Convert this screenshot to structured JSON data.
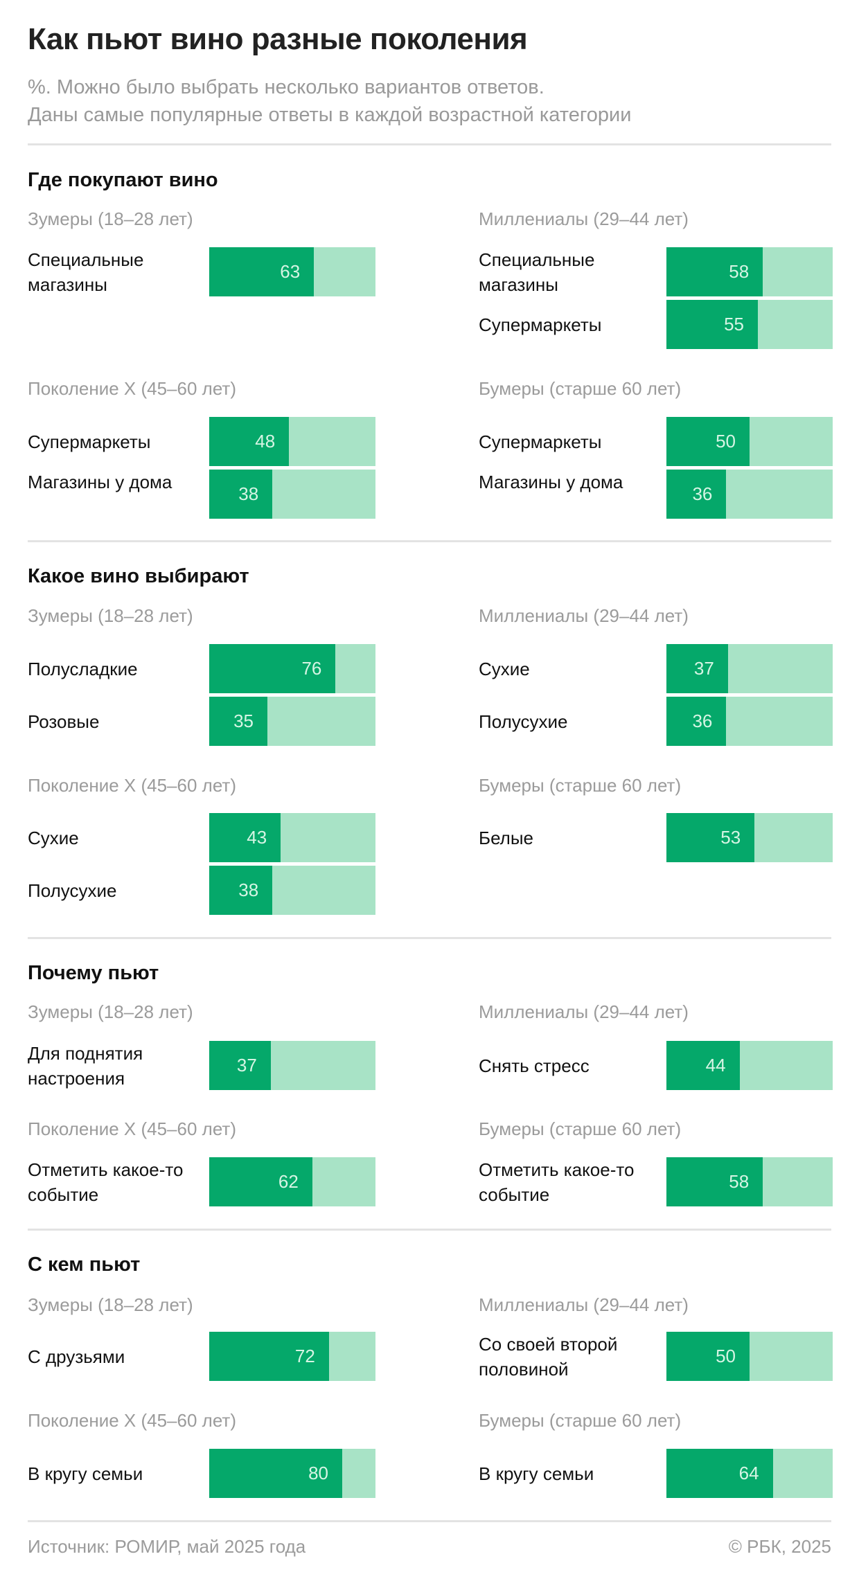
{
  "header": {
    "title": "Как пьют вино разные поколения",
    "subtitle_line1": "%. Можно было выбрать несколько вариантов ответов.",
    "subtitle_line2": "Даны самые популярные ответы в каждой возрастной категории"
  },
  "colors": {
    "bar_fill": "#05A86A",
    "bar_track": "#A8E3C6",
    "value_text": "#D6F5E4",
    "muted_text": "#9B9B9B"
  },
  "generations": {
    "zoomers": "Зумеры (18–28 лет)",
    "millennials": "Миллениалы (29–44 лет)",
    "genx": "Поколение X (45–60 лет)",
    "boomers": "Бумеры (старше 60 лет)"
  },
  "sections": [
    {
      "title": "Где покупают вино",
      "zoomers": [
        {
          "label": "Специальные магазины",
          "value": 63
        }
      ],
      "millennials": [
        {
          "label": "Специальные магазины",
          "value": 58
        },
        {
          "label": "Супермаркеты",
          "value": 55
        }
      ],
      "genx": [
        {
          "label": "Супермаркеты",
          "value": 48
        },
        {
          "label": "Магазины у дома",
          "value": 38
        }
      ],
      "boomers": [
        {
          "label": "Супермаркеты",
          "value": 50
        },
        {
          "label": "Магазины у дома",
          "value": 36
        }
      ]
    },
    {
      "title": "Какое вино выбирают",
      "zoomers": [
        {
          "label": "Полусладкие",
          "value": 76
        },
        {
          "label": "Розовые",
          "value": 35
        }
      ],
      "millennials": [
        {
          "label": "Сухие",
          "value": 37
        },
        {
          "label": "Полусухие",
          "value": 36
        }
      ],
      "genx": [
        {
          "label": "Сухие",
          "value": 43
        },
        {
          "label": "Полусухие",
          "value": 38
        }
      ],
      "boomers": [
        {
          "label": "Белые",
          "value": 53
        }
      ]
    },
    {
      "title": "Почему пьют",
      "zoomers": [
        {
          "label": "Для поднятия настроения",
          "value": 37
        }
      ],
      "millennials": [
        {
          "label": "Снять стресс",
          "value": 44
        }
      ],
      "genx": [
        {
          "label": "Отметить какое-то событие",
          "value": 62
        }
      ],
      "boomers": [
        {
          "label": "Отметить какое-то событие",
          "value": 58
        }
      ]
    },
    {
      "title": "С кем пьют",
      "zoomers": [
        {
          "label": "С друзьями",
          "value": 72
        }
      ],
      "millennials": [
        {
          "label": "Со своей второй половиной",
          "value": 50
        }
      ],
      "genx": [
        {
          "label": "В кругу семьи",
          "value": 80
        }
      ],
      "boomers": [
        {
          "label": "В кругу семьи",
          "value": 64
        }
      ]
    }
  ],
  "footer": {
    "source": "Источник: РОМИР, май 2025 года",
    "copyright": "© РБК, 2025"
  },
  "chart_data": {
    "type": "bar",
    "title": "Как пьют вино разные поколения",
    "subtitle": "%. Можно было выбрать несколько вариантов ответов. Даны самые популярные ответы в каждой возрастной категории",
    "xlabel": "",
    "ylabel": "%",
    "xlim": [
      0,
      100
    ],
    "orientation": "horizontal",
    "panels": [
      {
        "section": "Где покупают вино",
        "group": "Зумеры (18–28 лет)",
        "categories": [
          "Специальные магазины"
        ],
        "values": [
          63
        ]
      },
      {
        "section": "Где покупают вино",
        "group": "Миллениалы (29–44 лет)",
        "categories": [
          "Специальные магазины",
          "Супермаркеты"
        ],
        "values": [
          58,
          55
        ]
      },
      {
        "section": "Где покупают вино",
        "group": "Поколение X (45–60 лет)",
        "categories": [
          "Супермаркеты",
          "Магазины у дома"
        ],
        "values": [
          48,
          38
        ]
      },
      {
        "section": "Где покупают вино",
        "group": "Бумеры (старше 60 лет)",
        "categories": [
          "Супермаркеты",
          "Магазины у дома"
        ],
        "values": [
          50,
          36
        ]
      },
      {
        "section": "Какое вино выбирают",
        "group": "Зумеры (18–28 лет)",
        "categories": [
          "Полусладкие",
          "Розовые"
        ],
        "values": [
          76,
          35
        ]
      },
      {
        "section": "Какое вино выбирают",
        "group": "Миллениалы (29–44 лет)",
        "categories": [
          "Сухие",
          "Полусухие"
        ],
        "values": [
          37,
          36
        ]
      },
      {
        "section": "Какое вино выбирают",
        "group": "Поколение X (45–60 лет)",
        "categories": [
          "Сухие",
          "Полусухие"
        ],
        "values": [
          43,
          38
        ]
      },
      {
        "section": "Какое вино выбирают",
        "group": "Бумеры (старше 60 лет)",
        "categories": [
          "Белые"
        ],
        "values": [
          53
        ]
      },
      {
        "section": "Почему пьют",
        "group": "Зумеры (18–28 лет)",
        "categories": [
          "Для поднятия настроения"
        ],
        "values": [
          37
        ]
      },
      {
        "section": "Почему пьют",
        "group": "Миллениалы (29–44 лет)",
        "categories": [
          "Снять стресс"
        ],
        "values": [
          44
        ]
      },
      {
        "section": "Почему пьют",
        "group": "Поколение X (45–60 лет)",
        "categories": [
          "Отметить какое-то событие"
        ],
        "values": [
          62
        ]
      },
      {
        "section": "Почему пьют",
        "group": "Бумеры (старше 60 лет)",
        "categories": [
          "Отметить какое-то событие"
        ],
        "values": [
          58
        ]
      },
      {
        "section": "С кем пьют",
        "group": "Зумеры (18–28 лет)",
        "categories": [
          "С друзьями"
        ],
        "values": [
          72
        ]
      },
      {
        "section": "С кем пьют",
        "group": "Миллениалы (29–44 лет)",
        "categories": [
          "Со своей второй половиной"
        ],
        "values": [
          50
        ]
      },
      {
        "section": "С кем пьют",
        "group": "Поколение X (45–60 лет)",
        "categories": [
          "В кругу семьи"
        ],
        "values": [
          80
        ]
      },
      {
        "section": "С кем пьют",
        "group": "Бумеры (старше 60 лет)",
        "categories": [
          "В кругу семьи"
        ],
        "values": [
          64
        ]
      }
    ],
    "source": "Источник: РОМИР, май 2025 года"
  }
}
